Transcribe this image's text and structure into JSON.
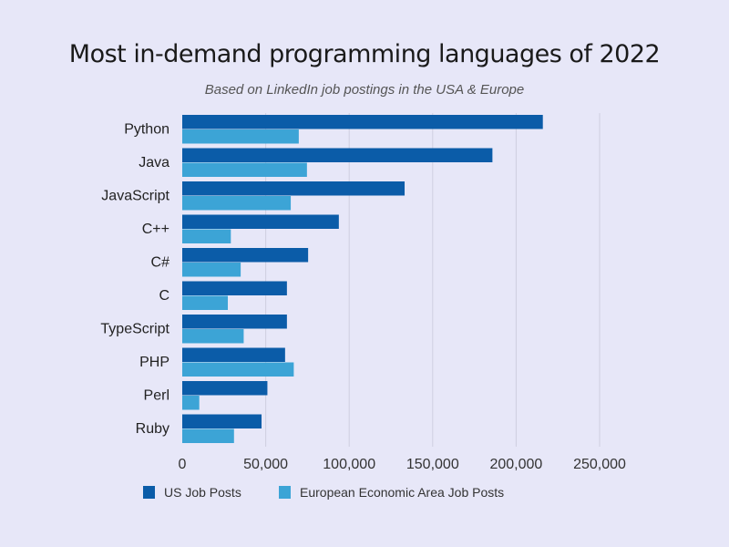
{
  "chart_data": {
    "type": "bar",
    "orientation": "horizontal",
    "title": "Most in-demand programming languages of 2022",
    "subtitle": "Based on LinkedIn job postings in the USA & Europe",
    "categories": [
      "Python",
      "Java",
      "JavaScript",
      "C++",
      "C#",
      "C",
      "TypeScript",
      "PHP",
      "Perl",
      "Ruby"
    ],
    "series": [
      {
        "name": "US Job Posts",
        "color": "#0b5ca8",
        "values": [
          216000,
          185800,
          133200,
          93800,
          75400,
          62700,
          62700,
          61600,
          51000,
          47500
        ]
      },
      {
        "name": "European Economic Area Job Posts",
        "color": "#3ca4d6",
        "values": [
          69800,
          74700,
          65000,
          29100,
          35000,
          27300,
          36800,
          66800,
          10200,
          31000
        ]
      }
    ],
    "xlim": [
      0,
      250000
    ],
    "xticks": [
      "0",
      "50,000",
      "100,000",
      "150,000",
      "200,000",
      "250,000"
    ],
    "grid": true,
    "legend": "bottom"
  }
}
